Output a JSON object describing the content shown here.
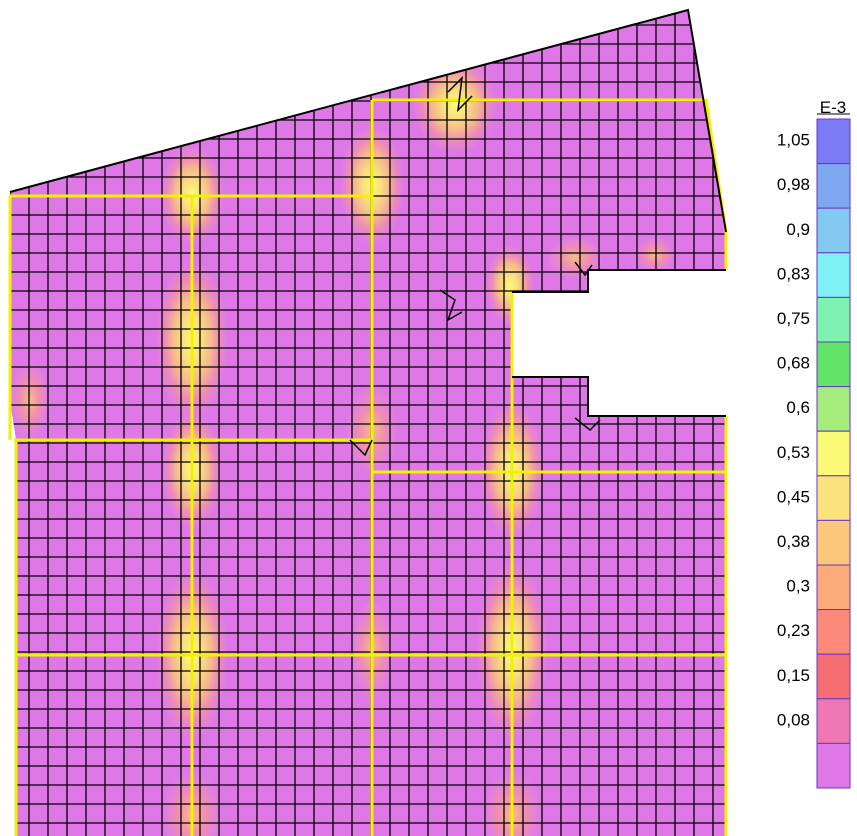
{
  "legend": {
    "exponent_label": "E-3",
    "tick_labels": [
      "1,05",
      "0,98",
      "0,9",
      "0,83",
      "0,75",
      "0,68",
      "0,6",
      "0,53",
      "0,45",
      "0,38",
      "0,3",
      "0,23",
      "0,15",
      "0,08"
    ],
    "swatch_colors": [
      "#7b7bf5",
      "#7fa8f2",
      "#83c9f0",
      "#7ff0f3",
      "#7ff2b2",
      "#62e468",
      "#a6ec7d",
      "#fbfb78",
      "#fbe27c",
      "#fbc778",
      "#fbab78",
      "#fb8a78",
      "#f46e72",
      "#ee78b4",
      "#de78e6"
    ]
  },
  "colors": {
    "base": "#de78e6",
    "mesh": "#000000",
    "beam": "#f2f200",
    "hot_core": "#fbfb78",
    "hot_mid": "#fbc778",
    "hot_edge": "#f8a0a8"
  }
}
